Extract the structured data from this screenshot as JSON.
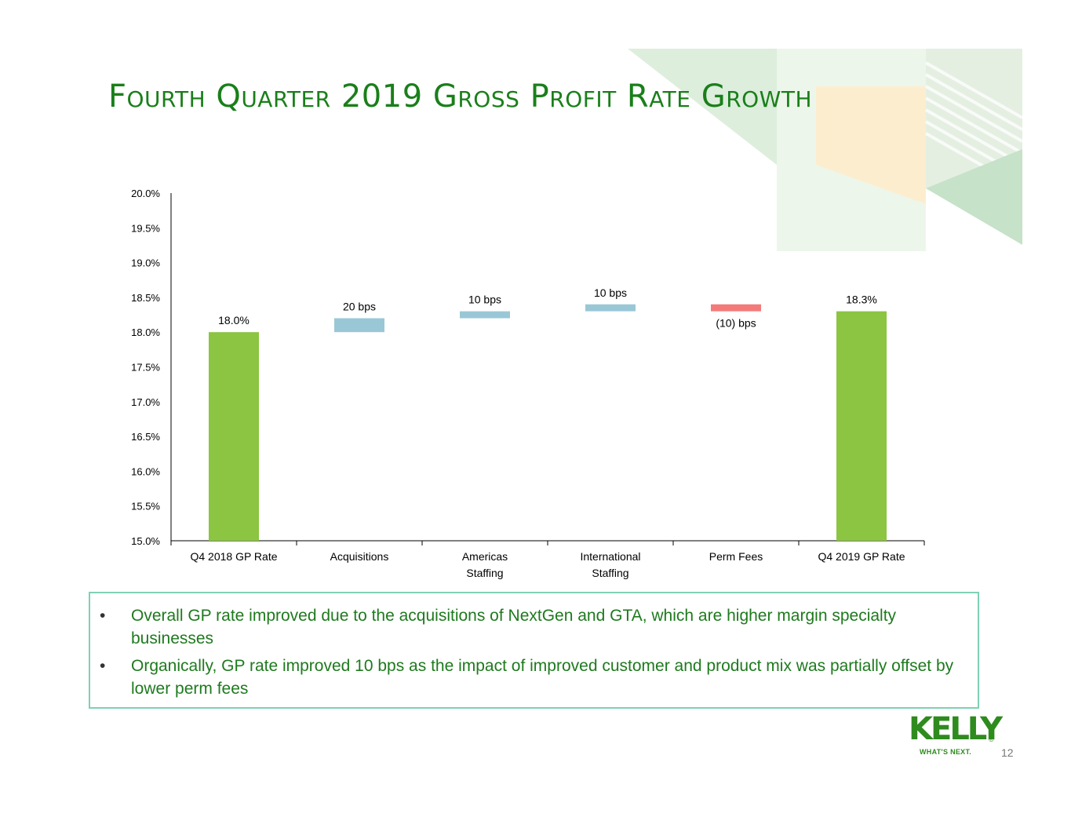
{
  "title": "Fourth Quarter 2019 Gross Profit Rate Growth",
  "colors": {
    "title": "#1a7f1a",
    "total_bar": "#8bc541",
    "increase_bar": "#9ac7d6",
    "decrease_bar": "#f47a7a",
    "note_text": "#1e7a1e",
    "note_border": "#7fd1b3",
    "brand": "#2e8b1e"
  },
  "chart_data": {
    "type": "bar",
    "subtype": "waterfall",
    "title": "",
    "xlabel": "",
    "ylabel": "",
    "ylim": [
      15.0,
      20.0
    ],
    "y_ticks": [
      "20.0%",
      "19.5%",
      "19.0%",
      "18.5%",
      "18.0%",
      "17.5%",
      "17.0%",
      "16.5%",
      "16.0%",
      "15.5%",
      "15.0%"
    ],
    "grid": false,
    "legend": "none",
    "categories": [
      [
        "Q4 2018 GP Rate"
      ],
      [
        "Acquisitions"
      ],
      [
        "Americas",
        "Staffing"
      ],
      [
        "International",
        "Staffing"
      ],
      [
        "Perm Fees"
      ],
      [
        "Q4 2019 GP Rate"
      ]
    ],
    "bars": [
      {
        "kind": "total",
        "start": 15.0,
        "end": 18.0,
        "label": "18.0%"
      },
      {
        "kind": "increase",
        "start": 18.0,
        "end": 18.2,
        "label": "20 bps"
      },
      {
        "kind": "increase",
        "start": 18.2,
        "end": 18.3,
        "label": "10 bps"
      },
      {
        "kind": "increase",
        "start": 18.3,
        "end": 18.4,
        "label": "10 bps"
      },
      {
        "kind": "decrease",
        "start": 18.4,
        "end": 18.3,
        "label": "(10) bps"
      },
      {
        "kind": "total",
        "start": 15.0,
        "end": 18.3,
        "label": "18.3%"
      }
    ]
  },
  "notes": [
    "Overall GP rate improved due to the acquisitions of NextGen and GTA, which are higher margin specialty businesses",
    "Organically, GP rate improved 10 bps as the impact of improved customer and product mix was partially offset by lower perm fees"
  ],
  "bullet_char": "•",
  "logo": {
    "word": "KELLY",
    "registered": "®",
    "tagline": "WHAT'S NEXT."
  },
  "page_number": "12"
}
